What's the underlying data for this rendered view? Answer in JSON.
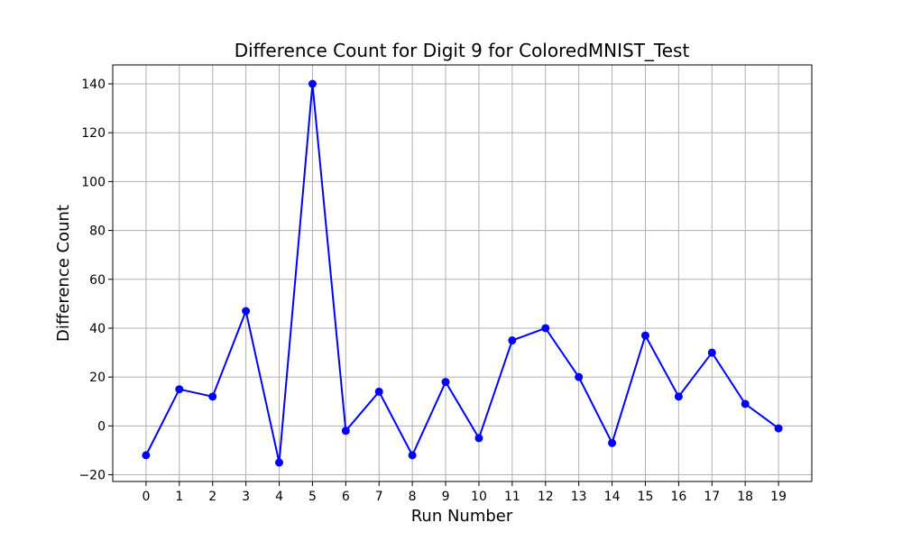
{
  "chart_data": {
    "type": "line",
    "title": "Difference Count for Digit 9 for ColoredMNIST_Test",
    "xlabel": "Run Number",
    "ylabel": "Difference Count",
    "x": [
      0,
      1,
      2,
      3,
      4,
      5,
      6,
      7,
      8,
      9,
      10,
      11,
      12,
      13,
      14,
      15,
      16,
      17,
      18,
      19
    ],
    "y": [
      -12,
      15,
      12,
      47,
      -15,
      140,
      -2,
      14,
      -12,
      18,
      -5,
      35,
      40,
      20,
      -7,
      37,
      12,
      30,
      9,
      -1
    ],
    "xlim": [
      -1,
      20
    ],
    "ylim": [
      -22.75,
      147.75
    ],
    "xticks": [
      "0",
      "1",
      "2",
      "3",
      "4",
      "5",
      "6",
      "7",
      "8",
      "9",
      "10",
      "11",
      "12",
      "13",
      "14",
      "15",
      "16",
      "17",
      "18",
      "19"
    ],
    "yticks": [
      -20,
      0,
      20,
      40,
      60,
      80,
      100,
      120,
      140
    ],
    "ytick_labels": [
      "−20",
      "0",
      "20",
      "40",
      "60",
      "80",
      "100",
      "120",
      "140"
    ],
    "grid": true,
    "series_color": "#0000ff",
    "marker": "circle"
  }
}
